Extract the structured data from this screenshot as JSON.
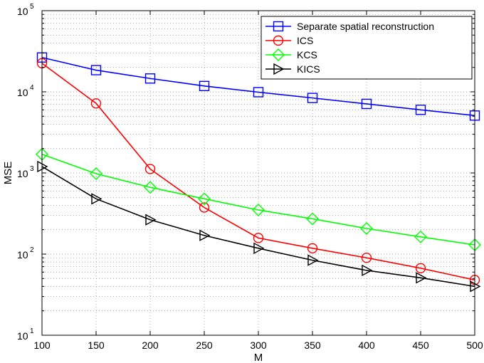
{
  "chart_data": {
    "type": "line",
    "xlabel": "M",
    "ylabel": "MSE",
    "xlim": [
      100,
      500
    ],
    "ylim": [
      10,
      100000
    ],
    "yscale": "log",
    "grid": true,
    "legend_position": "top-right",
    "x": [
      100,
      150,
      200,
      250,
      300,
      350,
      400,
      450,
      500
    ],
    "x_ticks": [
      "100",
      "150",
      "200",
      "250",
      "300",
      "350",
      "400",
      "450",
      "500"
    ],
    "y_ticks": [
      {
        "base": "10",
        "exp": "1"
      },
      {
        "base": "10",
        "exp": "2"
      },
      {
        "base": "10",
        "exp": "3"
      },
      {
        "base": "10",
        "exp": "4"
      },
      {
        "base": "10",
        "exp": "5"
      }
    ],
    "series": [
      {
        "name": "Separate spatial reconstruction",
        "color": "#0000ff",
        "marker": "square",
        "values": [
          26500,
          18500,
          14600,
          11800,
          9900,
          8400,
          7100,
          6000,
          5100
        ]
      },
      {
        "name": "ICS",
        "color": "#ff0000",
        "marker": "circle",
        "values": [
          22500,
          7200,
          1120,
          375,
          158,
          118,
          90,
          67,
          48
        ]
      },
      {
        "name": "KCS",
        "color": "#00ff00",
        "marker": "diamond",
        "values": [
          1700,
          980,
          665,
          480,
          350,
          272,
          207,
          163,
          130
        ]
      },
      {
        "name": "KICS",
        "color": "#000000",
        "marker": "triangle-right",
        "values": [
          1200,
          480,
          265,
          170,
          118,
          84,
          63,
          51,
          40
        ]
      }
    ]
  }
}
